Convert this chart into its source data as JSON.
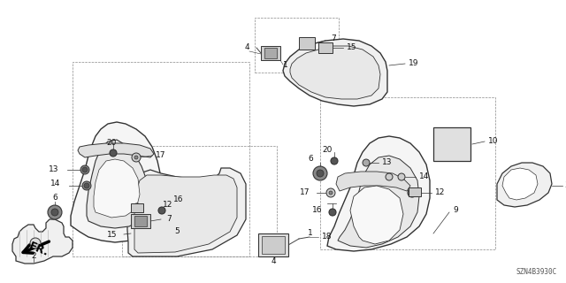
{
  "part_code": "SZN4B3930C",
  "bg_color": "#ffffff",
  "lc": "#333333",
  "lc2": "#555555",
  "label_color": "#111111",
  "fig_width": 6.4,
  "fig_height": 3.2,
  "dpi": 100
}
